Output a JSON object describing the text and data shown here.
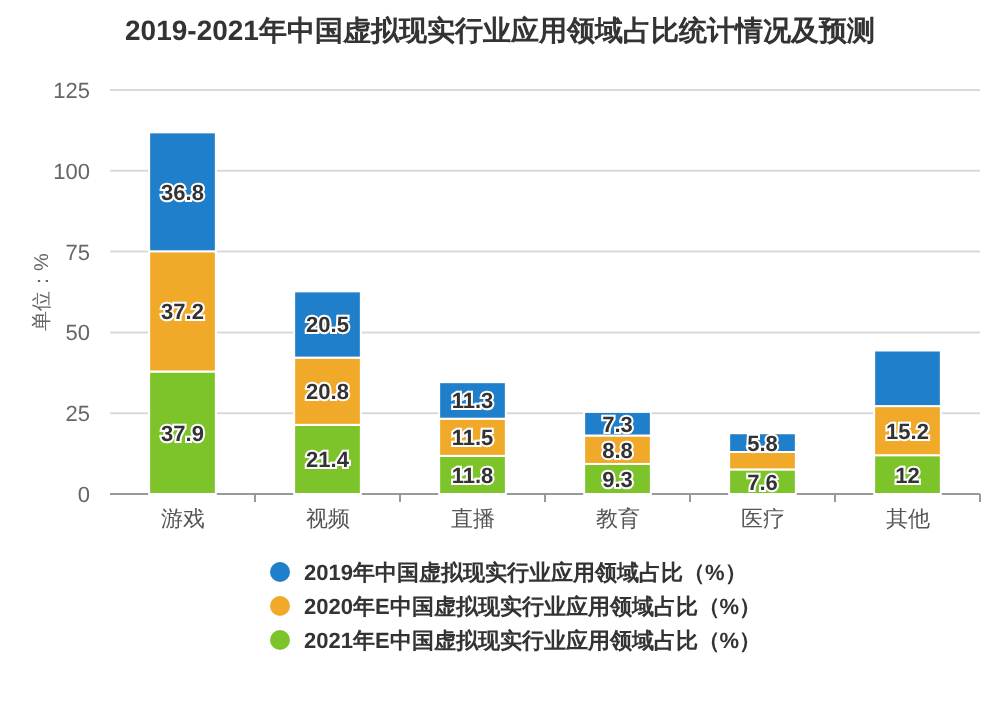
{
  "chart_data": {
    "type": "bar",
    "stacked": true,
    "title": "2019-2021年中国虚拟现实行业应用领域占比统计情况及预测",
    "ylabel": "单位：%",
    "categories": [
      "游戏",
      "视频",
      "直播",
      "教育",
      "医疗",
      "其他"
    ],
    "series": [
      {
        "name": "2021年E中国虚拟现实行业应用领域占比（%）",
        "color": "#7dc42a",
        "values": [
          37.9,
          21.4,
          11.8,
          9.3,
          7.6,
          12
        ],
        "value_labels": [
          "37.9",
          "21.4",
          "11.8",
          "9.3",
          "7.6",
          "12"
        ]
      },
      {
        "name": "2020年E中国虚拟现实行业应用领域占比（%）",
        "color": "#f0a929",
        "values": [
          37.2,
          20.8,
          11.5,
          8.8,
          5.4,
          15.2
        ],
        "value_labels": [
          "37.2",
          "20.8",
          "11.5",
          "8.8",
          null,
          "15.2"
        ]
      },
      {
        "name": "2019年中国虚拟现实行业应用领域占比（%）",
        "color": "#1f7fcb",
        "values": [
          36.8,
          20.5,
          11.3,
          7.3,
          5.8,
          17.2
        ],
        "value_labels": [
          "36.8",
          "20.5",
          "11.3",
          "7.3",
          "5.8",
          null
        ]
      }
    ],
    "ylim": [
      0,
      125
    ],
    "yticks": [
      0,
      25,
      50,
      75,
      100,
      125
    ],
    "grid": "y",
    "legend": "bottom",
    "marker": "circle"
  }
}
